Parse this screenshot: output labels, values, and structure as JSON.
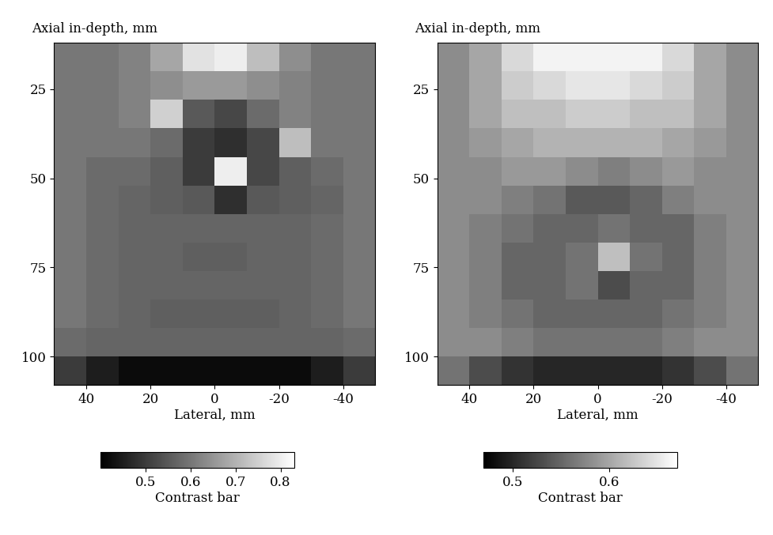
{
  "chart_data": [
    {
      "type": "heatmap",
      "x_label": "Lateral, mm",
      "y_label": "Axial in-depth, mm",
      "colorbar_label": "Contrast bar",
      "xlim": [
        50,
        -50
      ],
      "ylim": [
        108,
        12
      ],
      "xticks": [
        40,
        20,
        0,
        -20,
        -40
      ],
      "yticks": [
        25,
        50,
        75,
        100
      ],
      "x_edges": [
        50,
        40,
        30,
        20,
        10,
        0,
        -10,
        -20,
        -30,
        -40,
        -50
      ],
      "y_edges": [
        12,
        20,
        28,
        36,
        44,
        52,
        60,
        68,
        76,
        84,
        92,
        100,
        108
      ],
      "color_range": [
        0.4,
        0.83
      ],
      "color_ticks": [
        0.5,
        0.6,
        0.7,
        0.8
      ],
      "cells": [
        [
          0.6,
          0.6,
          0.62,
          0.68,
          0.78,
          0.8,
          0.72,
          0.64,
          0.6,
          0.6
        ],
        [
          0.6,
          0.6,
          0.62,
          0.64,
          0.66,
          0.66,
          0.64,
          0.62,
          0.6,
          0.6
        ],
        [
          0.6,
          0.6,
          0.62,
          0.75,
          0.55,
          0.52,
          0.58,
          0.62,
          0.6,
          0.6
        ],
        [
          0.6,
          0.6,
          0.6,
          0.58,
          0.5,
          0.48,
          0.52,
          0.72,
          0.6,
          0.6
        ],
        [
          0.6,
          0.58,
          0.58,
          0.56,
          0.5,
          0.8,
          0.52,
          0.56,
          0.58,
          0.6
        ],
        [
          0.6,
          0.58,
          0.57,
          0.56,
          0.55,
          0.48,
          0.55,
          0.56,
          0.57,
          0.6
        ],
        [
          0.6,
          0.58,
          0.57,
          0.57,
          0.57,
          0.57,
          0.57,
          0.57,
          0.58,
          0.6
        ],
        [
          0.6,
          0.58,
          0.57,
          0.57,
          0.56,
          0.56,
          0.57,
          0.57,
          0.58,
          0.6
        ],
        [
          0.6,
          0.58,
          0.57,
          0.57,
          0.57,
          0.57,
          0.57,
          0.57,
          0.58,
          0.6
        ],
        [
          0.6,
          0.58,
          0.57,
          0.56,
          0.56,
          0.56,
          0.56,
          0.57,
          0.58,
          0.6
        ],
        [
          0.58,
          0.57,
          0.57,
          0.57,
          0.57,
          0.57,
          0.57,
          0.57,
          0.57,
          0.58
        ],
        [
          0.5,
          0.45,
          0.42,
          0.42,
          0.42,
          0.42,
          0.42,
          0.42,
          0.45,
          0.5
        ]
      ]
    },
    {
      "type": "heatmap",
      "x_label": "Lateral, mm",
      "y_label": "Axial in-depth, mm",
      "colorbar_label": "Contrast bar",
      "xlim": [
        50,
        -50
      ],
      "ylim": [
        108,
        12
      ],
      "xticks": [
        40,
        20,
        0,
        -20,
        -40
      ],
      "yticks": [
        25,
        50,
        75,
        100
      ],
      "x_edges": [
        50,
        40,
        30,
        20,
        10,
        0,
        -10,
        -20,
        -30,
        -40,
        -50
      ],
      "y_edges": [
        12,
        20,
        28,
        36,
        44,
        52,
        60,
        68,
        76,
        84,
        92,
        100,
        108
      ],
      "color_range": [
        0.47,
        0.67
      ],
      "color_ticks": [
        0.5,
        0.6
      ],
      "cells": [
        [
          0.58,
          0.6,
          0.64,
          0.66,
          0.66,
          0.66,
          0.66,
          0.64,
          0.6,
          0.58
        ],
        [
          0.58,
          0.6,
          0.63,
          0.64,
          0.65,
          0.65,
          0.64,
          0.63,
          0.6,
          0.58
        ],
        [
          0.58,
          0.6,
          0.62,
          0.62,
          0.63,
          0.63,
          0.62,
          0.62,
          0.6,
          0.58
        ],
        [
          0.58,
          0.59,
          0.6,
          0.61,
          0.61,
          0.61,
          0.61,
          0.6,
          0.59,
          0.58
        ],
        [
          0.58,
          0.58,
          0.59,
          0.59,
          0.58,
          0.57,
          0.58,
          0.59,
          0.58,
          0.58
        ],
        [
          0.58,
          0.58,
          0.57,
          0.56,
          0.54,
          0.54,
          0.55,
          0.57,
          0.58,
          0.58
        ],
        [
          0.58,
          0.57,
          0.56,
          0.55,
          0.55,
          0.56,
          0.55,
          0.55,
          0.57,
          0.58
        ],
        [
          0.58,
          0.57,
          0.55,
          0.55,
          0.56,
          0.62,
          0.56,
          0.55,
          0.57,
          0.58
        ],
        [
          0.58,
          0.57,
          0.55,
          0.55,
          0.56,
          0.53,
          0.55,
          0.55,
          0.57,
          0.58
        ],
        [
          0.58,
          0.57,
          0.56,
          0.55,
          0.55,
          0.55,
          0.55,
          0.56,
          0.57,
          0.58
        ],
        [
          0.58,
          0.58,
          0.57,
          0.56,
          0.56,
          0.56,
          0.56,
          0.57,
          0.58,
          0.58
        ],
        [
          0.56,
          0.53,
          0.51,
          0.5,
          0.5,
          0.5,
          0.5,
          0.51,
          0.53,
          0.56
        ]
      ]
    }
  ]
}
